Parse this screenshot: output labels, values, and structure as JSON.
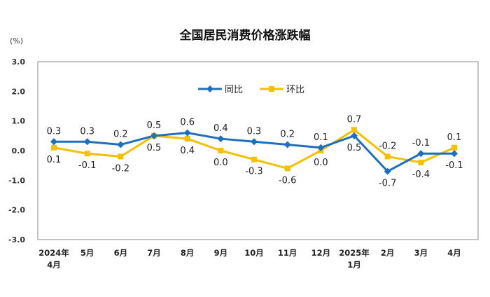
{
  "chart_data": {
    "type": "line",
    "title": "全国居民消费价格涨跌幅",
    "unit_label": "(%)",
    "categories": [
      [
        "2024年",
        "4月"
      ],
      [
        "5月"
      ],
      [
        "6月"
      ],
      [
        "7月"
      ],
      [
        "8月"
      ],
      [
        "9月"
      ],
      [
        "10月"
      ],
      [
        "11月"
      ],
      [
        "12月"
      ],
      [
        "2025年",
        "1月"
      ],
      [
        "2月"
      ],
      [
        "3月"
      ],
      [
        "4月"
      ]
    ],
    "ylim": [
      -3.0,
      3.0
    ],
    "yticks": [
      "3.0",
      "2.0",
      "1.0",
      "0.0",
      "-1.0",
      "-2.0",
      "-3.0"
    ],
    "grid": false,
    "legend_position": "top-center",
    "series": [
      {
        "name": "同比",
        "color": "#1f6fbf",
        "marker": "diamond",
        "values": [
          0.3,
          0.3,
          0.2,
          0.5,
          0.6,
          0.4,
          0.3,
          0.2,
          0.1,
          0.5,
          -0.7,
          -0.1,
          -0.1
        ],
        "labels": [
          "0.3",
          "0.3",
          "0.2",
          "0.5",
          "0.6",
          "0.4",
          "0.3",
          "0.2",
          "0.1",
          "0.5",
          "-0.7",
          "-0.1",
          "-0.1"
        ]
      },
      {
        "name": "环比",
        "color": "#f5c000",
        "marker": "square",
        "values": [
          0.1,
          -0.1,
          -0.2,
          0.5,
          0.4,
          0.0,
          -0.3,
          -0.6,
          0.0,
          0.7,
          -0.2,
          -0.4,
          0.1
        ],
        "labels": [
          "0.1",
          "-0.1",
          "-0.2",
          "0.5",
          "0.4",
          "0.0",
          "-0.3",
          "-0.6",
          "0.0",
          "0.7",
          "-0.2",
          "-0.4",
          "0.1"
        ]
      }
    ]
  }
}
